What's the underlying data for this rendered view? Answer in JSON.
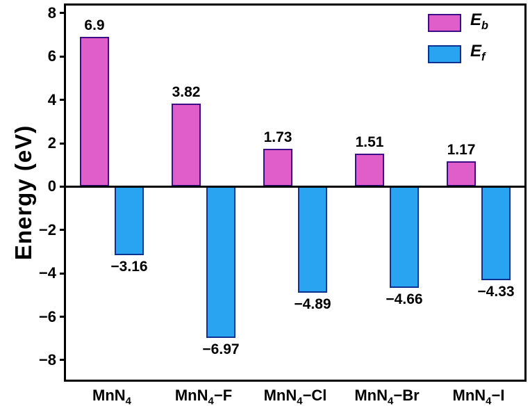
{
  "chart_data": {
    "type": "bar",
    "title": "",
    "xlabel": "",
    "ylabel": "Energy (eV)",
    "ylim": [
      -8.9,
      8.35
    ],
    "yticks": [
      8,
      6,
      4,
      2,
      0,
      -2,
      -4,
      -6,
      -8
    ],
    "grid": false,
    "legend_position": "top-right",
    "categories": [
      {
        "prefix": "MnN",
        "sub": "4",
        "suffix": ""
      },
      {
        "prefix": "MnN",
        "sub": "4",
        "suffix": "−F"
      },
      {
        "prefix": "MnN",
        "sub": "4",
        "suffix": "−Cl"
      },
      {
        "prefix": "MnN",
        "sub": "4",
        "suffix": "−Br"
      },
      {
        "prefix": "MnN",
        "sub": "4",
        "suffix": "−I"
      }
    ],
    "series": [
      {
        "name_main": "E",
        "name_sub": "b",
        "values": [
          6.9,
          3.82,
          1.73,
          1.51,
          1.17
        ],
        "labels": [
          "6.9",
          "3.82",
          "1.73",
          "1.51",
          "1.17"
        ],
        "fill": "#df5ec9",
        "edge": "#3c0d85"
      },
      {
        "name_main": "E",
        "name_sub": "f",
        "values": [
          -3.16,
          -6.97,
          -4.89,
          -4.66,
          -4.33
        ],
        "labels": [
          "−3.16",
          "−6.97",
          "−4.89",
          "−4.66",
          "−4.33"
        ],
        "fill": "#28a4f0",
        "edge": "#0d3190"
      }
    ]
  }
}
